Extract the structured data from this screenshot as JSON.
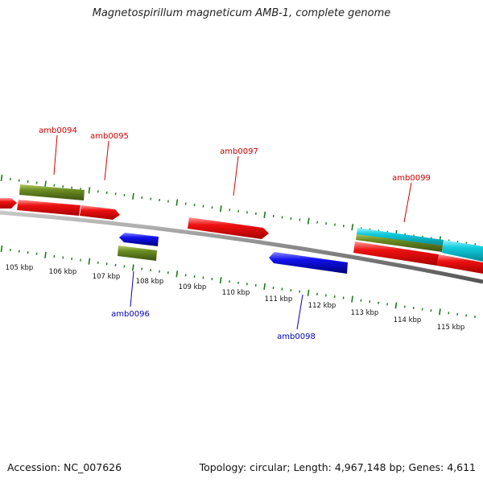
{
  "title": "Magnetospirillum magneticum AMB-1, complete genome",
  "footer": {
    "accession": "Accession: NC_007626",
    "summary": "Topology: circular; Length: 4,967,148 bp; Genes: 4,611"
  },
  "colors": {
    "forward_label": "#cc0000",
    "reverse_label": "#0000bb",
    "backbone": "#888888",
    "tick": "#1a7a1a",
    "red_feature": "#ee1111",
    "blue_feature": "#1111ee",
    "olive_feature": "#6b8e23",
    "cyan_feature": "#11ccdd"
  },
  "ticks": [
    "105 kbp",
    "106 kbp",
    "107 kbp",
    "108 kbp",
    "109 kbp",
    "110 kbp",
    "111 kbp",
    "112 kbp",
    "113 kbp",
    "114 kbp",
    "115 kbp"
  ],
  "gene_labels": [
    {
      "text": "amb0094",
      "strand": "forward"
    },
    {
      "text": "amb0095",
      "strand": "forward"
    },
    {
      "text": "amb0096",
      "strand": "reverse"
    },
    {
      "text": "amb0097",
      "strand": "forward"
    },
    {
      "text": "amb0098",
      "strand": "reverse"
    },
    {
      "text": "amb0099",
      "strand": "forward"
    }
  ]
}
